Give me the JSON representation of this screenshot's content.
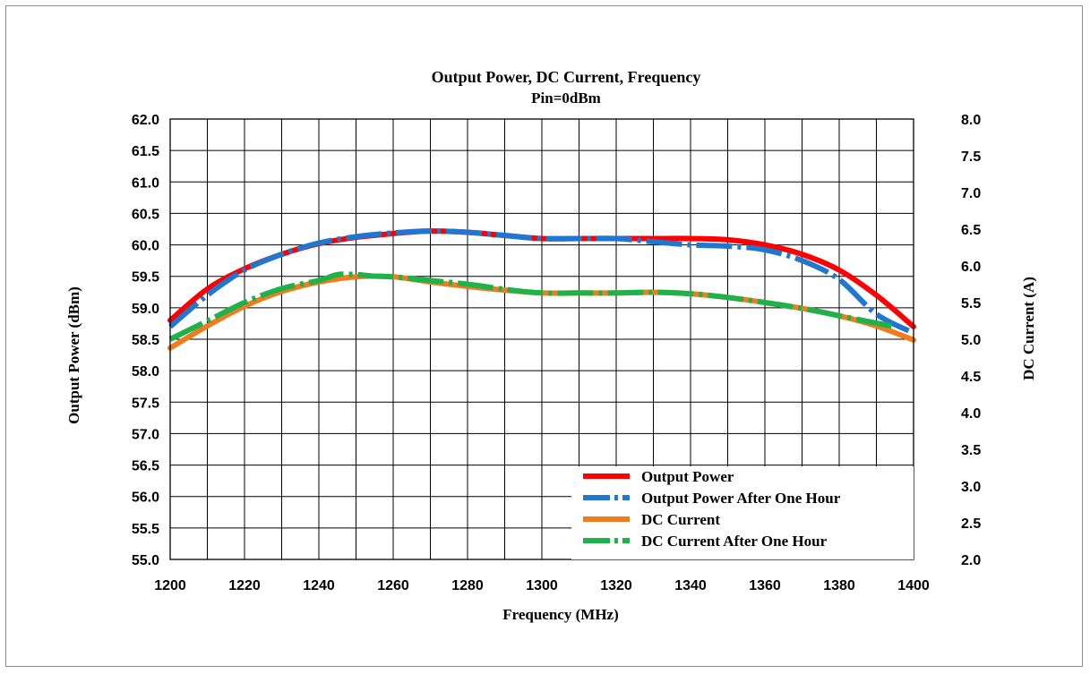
{
  "chart_data": {
    "type": "line",
    "title": "Output Power, DC  Current, Frequency",
    "subtitle": "Pin=0dBm",
    "xlabel": "Frequency (MHz)",
    "ylabel_left": "Output Power (dBm)",
    "ylabel_right": "DC Current  (A)",
    "xlim": [
      1200,
      1400
    ],
    "ylim_left": [
      55.0,
      62.0
    ],
    "ylim_right": [
      2.0,
      8.0
    ],
    "x_ticks": [
      "1200",
      "1220",
      "1240",
      "1260",
      "1280",
      "1300",
      "1320",
      "1340",
      "1360",
      "1380",
      "1400"
    ],
    "y_left_ticks": [
      "62.0",
      "61.5",
      "61.0",
      "60.5",
      "60.0",
      "59.5",
      "59.0",
      "58.5",
      "58.0",
      "57.5",
      "57.0",
      "56.5",
      "56.0",
      "55.5",
      "55.0"
    ],
    "y_right_ticks": [
      "8.0",
      "7.5",
      "7.0",
      "6.5",
      "6.0",
      "5.5",
      "5.0",
      "4.5",
      "4.0",
      "3.5",
      "3.0",
      "2.5",
      "2.0"
    ],
    "grid": true,
    "legend_position": "bottom-right",
    "series": [
      {
        "name": "Output Power",
        "axis": "left",
        "color": "#ff0000",
        "style": "solid",
        "x": [
          1200,
          1210,
          1220,
          1230,
          1240,
          1250,
          1260,
          1270,
          1280,
          1290,
          1300,
          1310,
          1320,
          1330,
          1340,
          1350,
          1360,
          1370,
          1380,
          1390,
          1400
        ],
        "y": [
          58.8,
          59.3,
          59.62,
          59.85,
          60.02,
          60.12,
          60.18,
          60.22,
          60.2,
          60.15,
          60.1,
          60.1,
          60.1,
          60.1,
          60.1,
          60.08,
          60.0,
          59.85,
          59.6,
          59.2,
          58.7
        ]
      },
      {
        "name": "Output Power After One Hour",
        "axis": "left",
        "color": "#1f77d0",
        "style": "dashed",
        "x": [
          1200,
          1210,
          1220,
          1230,
          1240,
          1250,
          1260,
          1270,
          1280,
          1290,
          1300,
          1310,
          1320,
          1330,
          1340,
          1350,
          1360,
          1370,
          1380,
          1390,
          1400
        ],
        "y": [
          58.7,
          59.2,
          59.6,
          59.85,
          60.03,
          60.13,
          60.19,
          60.22,
          60.2,
          60.15,
          60.1,
          60.1,
          60.1,
          60.05,
          60.0,
          59.98,
          59.92,
          59.75,
          59.45,
          58.9,
          58.6
        ]
      },
      {
        "name": "DC Current",
        "axis": "right",
        "color": "#f07c1e",
        "style": "solid",
        "x": [
          1200,
          1210,
          1220,
          1230,
          1240,
          1250,
          1260,
          1270,
          1280,
          1290,
          1300,
          1310,
          1320,
          1330,
          1340,
          1350,
          1360,
          1370,
          1380,
          1390,
          1400
        ],
        "y": [
          4.88,
          5.18,
          5.45,
          5.65,
          5.78,
          5.85,
          5.85,
          5.78,
          5.72,
          5.67,
          5.63,
          5.63,
          5.63,
          5.64,
          5.62,
          5.57,
          5.5,
          5.42,
          5.32,
          5.18,
          4.99
        ]
      },
      {
        "name": "DC Current After One Hour",
        "axis": "right",
        "color": "#1fb24a",
        "style": "dashed",
        "x": [
          1200,
          1210,
          1220,
          1230,
          1240,
          1245,
          1250,
          1255,
          1260,
          1270,
          1280,
          1290,
          1300,
          1310,
          1320,
          1330,
          1340,
          1350,
          1360,
          1370,
          1380,
          1390,
          1395
        ],
        "y": [
          5.0,
          5.25,
          5.5,
          5.69,
          5.8,
          5.88,
          5.88,
          5.86,
          5.85,
          5.8,
          5.75,
          5.68,
          5.63,
          5.63,
          5.63,
          5.64,
          5.62,
          5.57,
          5.5,
          5.42,
          5.32,
          5.22,
          5.17
        ]
      }
    ]
  }
}
